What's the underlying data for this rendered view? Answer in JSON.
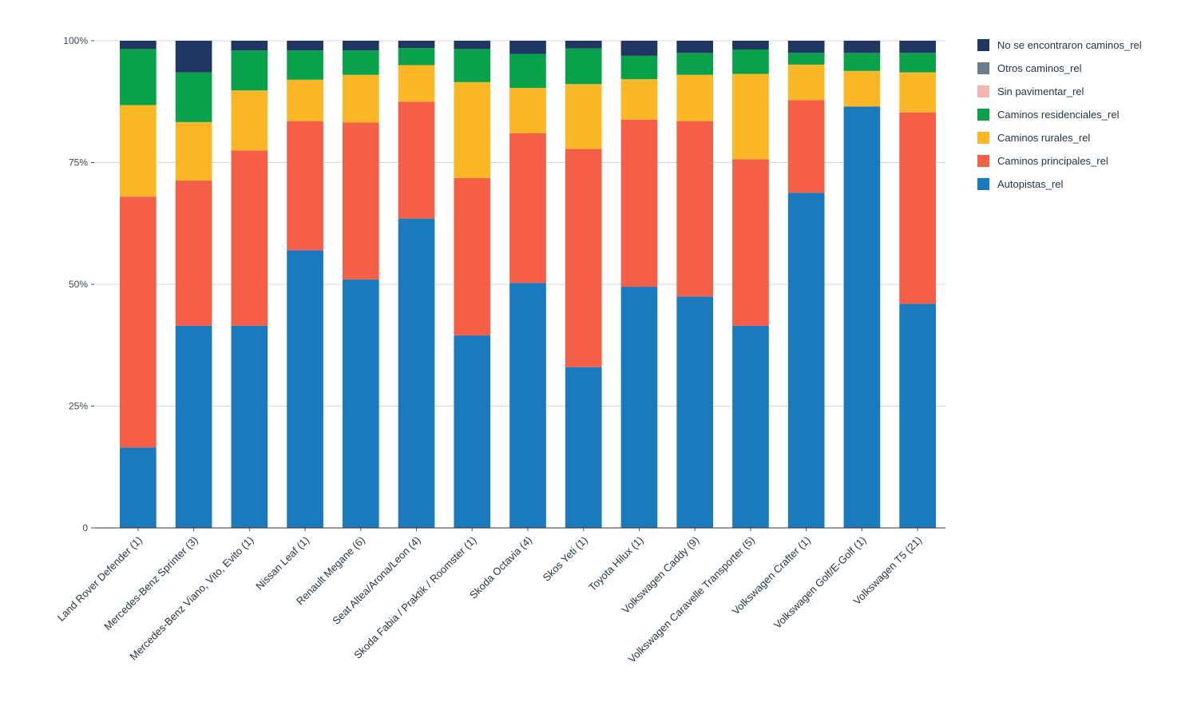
{
  "chart_data": {
    "type": "bar",
    "stacked": true,
    "normalized": true,
    "title": "",
    "xlabel": "",
    "ylabel": "",
    "ylim": [
      0,
      100
    ],
    "y_ticks": [
      {
        "value": 0,
        "label": "0"
      },
      {
        "value": 25,
        "label": "25%"
      },
      {
        "value": 50,
        "label": "50%"
      },
      {
        "value": 75,
        "label": "75%"
      },
      {
        "value": 100,
        "label": "100%"
      }
    ],
    "grid": true,
    "legend_position": "right",
    "categories": [
      "Land Rover Defender (1)",
      "Mercedes-Benz Sprinter (3)",
      "Mercedes-Benz Viano, Vito, Evito (1)",
      "Nissan Leaf (1)",
      "Renault Megane (6)",
      "Seat Altea/Arona/Leon (4)",
      "Skoda Fabia / Praktik / Roomster (1)",
      "Skoda Octavia (4)",
      "Skos Yeti (1)",
      "Toyota Hilux (1)",
      "Volkswagen Caddy (9)",
      "Volkswagen Caravelle Transporter (5)",
      "Volkswagen Crafter (1)",
      "Volkswagen Golf/E-Golf (1)",
      "Volkswagen T5 (21)"
    ],
    "series": [
      {
        "name": "Autopistas_rel",
        "color": "#1b79bd",
        "values": [
          16.5,
          41.5,
          41.5,
          57.0,
          51.0,
          63.5,
          39.5,
          50.3,
          33.0,
          49.5,
          47.5,
          41.5,
          68.8,
          86.5,
          46.0
        ]
      },
      {
        "name": "Caminos principales_rel",
        "color": "#f55f47",
        "values": [
          51.5,
          29.8,
          36.0,
          26.5,
          32.2,
          24.0,
          32.3,
          30.7,
          44.8,
          34.3,
          36.0,
          34.2,
          19.0,
          0.0,
          39.3
        ]
      },
      {
        "name": "Caminos rurales_rel",
        "color": "#fbb725",
        "values": [
          18.8,
          12.0,
          12.3,
          8.5,
          9.8,
          7.5,
          19.7,
          9.3,
          13.3,
          8.3,
          9.5,
          17.5,
          7.3,
          7.3,
          8.2
        ]
      },
      {
        "name": "Caminos residenciales_rel",
        "color": "#0aa14b",
        "values": [
          11.5,
          10.2,
          8.2,
          6.0,
          5.0,
          3.5,
          6.8,
          7.0,
          7.3,
          4.8,
          4.5,
          5.0,
          2.4,
          3.7,
          4.0
        ]
      },
      {
        "name": "Sin pavimentar_rel",
        "color": "#f3b7b1",
        "values": [
          0,
          0,
          0,
          0,
          0,
          0,
          0,
          0,
          0,
          0,
          0,
          0,
          0,
          0,
          0
        ]
      },
      {
        "name": "Otros caminos_rel",
        "color": "#6a7d8e",
        "values": [
          0,
          0,
          0,
          0,
          0,
          0,
          0,
          0,
          0,
          0,
          0,
          0,
          0,
          0,
          0
        ]
      },
      {
        "name": "No se encontraron caminos_rel",
        "color": "#1f3762",
        "values": [
          1.7,
          6.5,
          2.0,
          2.0,
          2.0,
          1.5,
          1.7,
          2.7,
          1.6,
          3.1,
          2.5,
          1.8,
          2.5,
          2.5,
          2.5
        ]
      }
    ]
  },
  "legend": {
    "items": [
      {
        "label": "No se encontraron caminos_rel",
        "color": "#1f3762"
      },
      {
        "label": "Otros caminos_rel",
        "color": "#6a7d8e"
      },
      {
        "label": "Sin pavimentar_rel",
        "color": "#f3b7b1"
      },
      {
        "label": "Caminos residenciales_rel",
        "color": "#0aa14b"
      },
      {
        "label": "Caminos rurales_rel",
        "color": "#fbb725"
      },
      {
        "label": "Caminos principales_rel",
        "color": "#f55f47"
      },
      {
        "label": "Autopistas_rel",
        "color": "#1b79bd"
      }
    ]
  }
}
